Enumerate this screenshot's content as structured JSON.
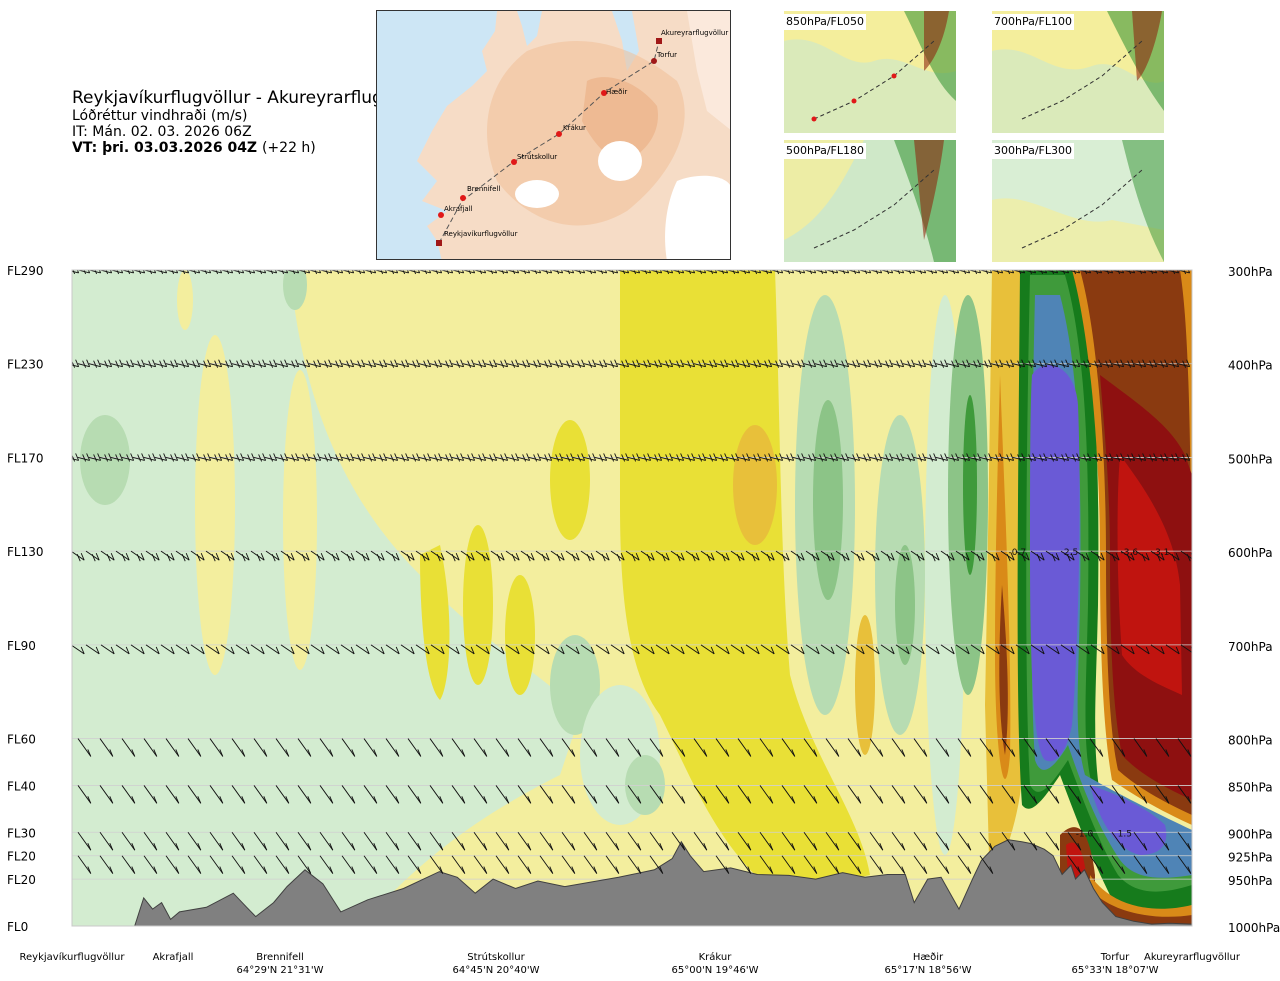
{
  "title": {
    "main": "Reykjavíkurflugvöllur - Akureyrarflugvöllur",
    "variable": "Lóðréttur vindhraði (m/s)",
    "issue_time": "IT: Mán. 02. 03. 2026 06Z",
    "valid_time": "VT: þri. 03.03.2026 04Z",
    "lead": "(+22 h)"
  },
  "route_map": {
    "waypoints": [
      "Akureyrarflugvöllur",
      "Torfur",
      "Hæðir",
      "Krákur",
      "Strútskollur",
      "Brennifell",
      "Akrafjall",
      "Reykjavíkurflugvöllur"
    ]
  },
  "level_maps": [
    {
      "label": "850hPa/FL050"
    },
    {
      "label": "700hPa/FL100"
    },
    {
      "label": "500hPa/FL180"
    },
    {
      "label": "300hPa/FL300"
    }
  ],
  "colors": {
    "strong_up": "#8e1010",
    "up": "#c0140f",
    "mid_up": "#8a3a10",
    "up_orange": "#d98a18",
    "light_up": "#e8c03a",
    "pale_up": "#e9e036",
    "faint_up": "#f3ee9e",
    "faint_down": "#d3ecd0",
    "light_down": "#b7dcb2",
    "mid_down": "#8cc487",
    "down": "#3f9a3b",
    "strong_down": "#167b1c",
    "stronger_down": "#4f84b6",
    "strongest_down": "#6a5ad6",
    "terrain": "#808080"
  },
  "chart_data": {
    "type": "heatmap",
    "title": "Reykjavíkurflugvöllur - Akureyrarflugvöllur",
    "variable": "Lóðréttur vindhraði (m/s)",
    "units": "m/s",
    "x_axis": {
      "range_km": [
        0,
        250
      ],
      "points": [
        {
          "name": "Reykjavíkurflugvöllur",
          "km": 0,
          "coord": ""
        },
        {
          "name": "Akrafjall",
          "km": 21,
          "coord": ""
        },
        {
          "name": "Brennifell",
          "km": 46,
          "coord": "64°29'N 21°31'W"
        },
        {
          "name": "Strútskollur",
          "km": 95,
          "coord": "64°45'N 20°40'W"
        },
        {
          "name": "Krákur",
          "km": 143,
          "coord": "65°00'N 19°46'W"
        },
        {
          "name": "Hæðir",
          "km": 191,
          "coord": "65°17'N 18°56'W"
        },
        {
          "name": "Torfur",
          "km": 241,
          "coord": "65°33'N 18°07'W"
        },
        {
          "name": "Akureyrarflugvöllur",
          "km": 250,
          "coord": ""
        }
      ]
    },
    "y_axis": {
      "pressure_range_hPa": [
        1000,
        300
      ],
      "levels": [
        {
          "fl": "FL290",
          "hpa": "300hPa",
          "p": 300
        },
        {
          "fl": "FL230",
          "hpa": "400hPa",
          "p": 400
        },
        {
          "fl": "FL170",
          "hpa": "500hPa",
          "p": 500
        },
        {
          "fl": "FL130",
          "hpa": "600hPa",
          "p": 600
        },
        {
          "fl": "FL90",
          "hpa": "700hPa",
          "p": 700
        },
        {
          "fl": "FL60",
          "hpa": "800hPa",
          "p": 800
        },
        {
          "fl": "FL40",
          "hpa": "850hPa",
          "p": 850
        },
        {
          "fl": "FL30",
          "hpa": "900hPa",
          "p": 900
        },
        {
          "fl": "FL20",
          "hpa": "925hPa",
          "p": 925
        },
        {
          "fl": "FL20",
          "hpa": "950hPa",
          "p": 950
        },
        {
          "fl": "FL0",
          "hpa": "1000hPa",
          "p": 1000
        }
      ]
    },
    "value_labels": [
      {
        "text": "-0.7",
        "km": 211,
        "p": 600
      },
      {
        "text": "2.5",
        "km": 223,
        "p": 600
      },
      {
        "text": "-3.6",
        "km": 236,
        "p": 600
      },
      {
        "text": "-3.1",
        "km": 243,
        "p": 600
      },
      {
        "text": "-1.0",
        "km": 226,
        "p": 900
      },
      {
        "text": "1.5",
        "km": 235,
        "p": 900
      }
    ],
    "terrain_profile": {
      "km": [
        0,
        14,
        16,
        18,
        20,
        22,
        24,
        30,
        36,
        39,
        41,
        45,
        48,
        52,
        56,
        60,
        66,
        74,
        82,
        86,
        90,
        94,
        99,
        104,
        110,
        122,
        130,
        134,
        136,
        138,
        141,
        147,
        153,
        160,
        166,
        172,
        177,
        182,
        186,
        188,
        191,
        194,
        198,
        201,
        203,
        206,
        209,
        212,
        214,
        217,
        219,
        221,
        223,
        224,
        226,
        228,
        230,
        233,
        237,
        241,
        245,
        250
      ],
      "hPa": [
        1000,
        1000,
        970,
        982,
        975,
        993,
        985,
        980,
        965,
        980,
        990,
        975,
        958,
        940,
        955,
        985,
        972,
        960,
        942,
        948,
        965,
        950,
        960,
        952,
        958,
        948,
        940,
        928,
        910,
        925,
        942,
        938,
        945,
        946,
        950,
        943,
        948,
        945,
        945,
        975,
        950,
        948,
        982,
        950,
        930,
        915,
        908,
        910,
        912,
        918,
        925,
        945,
        935,
        950,
        940,
        960,
        975,
        990,
        995,
        998,
        997,
        998
      ]
    }
  }
}
